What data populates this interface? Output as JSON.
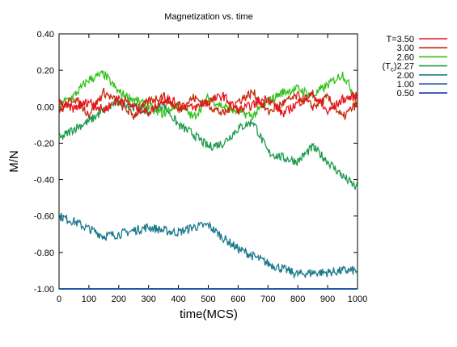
{
  "chart_data": {
    "type": "line",
    "title": "Magnetization vs. time",
    "xlabel": "time(MCS)",
    "ylabel": "M/N",
    "xlim": [
      0,
      1000
    ],
    "ylim": [
      -1.0,
      0.4
    ],
    "x_ticks": [
      0,
      100,
      200,
      300,
      400,
      500,
      600,
      700,
      800,
      900,
      1000
    ],
    "y_ticks": [
      0.4,
      0.2,
      0.0,
      -0.2,
      -0.4,
      -0.6,
      -0.8,
      -1.0
    ],
    "x_tick_labels": [
      "0",
      "100",
      "200",
      "300",
      "400",
      "500",
      "600",
      "700",
      "800",
      "900",
      "1000"
    ],
    "y_tick_labels": [
      "0.40",
      "0.20",
      "0.00",
      "-0.20",
      "-0.40",
      "-0.60",
      "-0.80",
      "-1.00"
    ],
    "grid": false,
    "legend_position": "right",
    "x": [
      0,
      50,
      100,
      150,
      200,
      250,
      300,
      350,
      400,
      450,
      500,
      550,
      600,
      650,
      700,
      750,
      800,
      850,
      900,
      950,
      1000
    ],
    "series": [
      {
        "name": "T=3.50",
        "color": "#e8131b",
        "values": [
          0.02,
          -0.01,
          0.03,
          -0.02,
          0.05,
          0.0,
          -0.03,
          0.04,
          0.02,
          -0.01,
          0.03,
          0.06,
          -0.02,
          0.01,
          0.05,
          -0.04,
          0.02,
          0.07,
          -0.03,
          0.04,
          0.06
        ]
      },
      {
        "name": "3.00",
        "color": "#c8280c",
        "values": [
          -0.03,
          0.05,
          -0.04,
          0.08,
          0.02,
          -0.05,
          0.03,
          0.06,
          -0.02,
          0.05,
          0.01,
          -0.04,
          0.03,
          0.08,
          -0.03,
          0.02,
          0.06,
          0.0,
          0.05,
          -0.06,
          0.02
        ]
      },
      {
        "name": "2.60",
        "color": "#33c21c",
        "values": [
          0.01,
          0.06,
          0.15,
          0.18,
          0.08,
          0.04,
          0.0,
          -0.04,
          0.02,
          -0.06,
          0.05,
          0.0,
          -0.03,
          -0.05,
          0.03,
          0.08,
          0.1,
          0.06,
          0.12,
          0.18,
          0.04
        ]
      },
      {
        "name": "(Tₙ)2.27",
        "display_name": "(Tc)2.27",
        "color": "#1f9a4e",
        "values": [
          -0.18,
          -0.12,
          -0.08,
          -0.02,
          0.03,
          0.0,
          -0.03,
          0.01,
          -0.1,
          -0.15,
          -0.22,
          -0.2,
          -0.12,
          -0.08,
          -0.25,
          -0.28,
          -0.3,
          -0.22,
          -0.3,
          -0.38,
          -0.45
        ]
      },
      {
        "name": "2.00",
        "color": "#1a7a8c",
        "values": [
          -0.6,
          -0.63,
          -0.67,
          -0.71,
          -0.7,
          -0.68,
          -0.66,
          -0.68,
          -0.69,
          -0.66,
          -0.65,
          -0.72,
          -0.78,
          -0.82,
          -0.86,
          -0.89,
          -0.92,
          -0.91,
          -0.91,
          -0.9,
          -0.9
        ]
      },
      {
        "name": "1.00",
        "color": "#1e5aa8",
        "values": [
          -1.0,
          -1.0,
          -1.0,
          -1.0,
          -1.0,
          -1.0,
          -1.0,
          -1.0,
          -1.0,
          -1.0,
          -1.0,
          -1.0,
          -1.0,
          -1.0,
          -1.0,
          -1.0,
          -1.0,
          -1.0,
          -1.0,
          -1.0,
          -1.0
        ]
      },
      {
        "name": "0.50",
        "color": "#0b1fa8",
        "values": [
          -1.0,
          -1.0,
          -1.0,
          -1.0,
          -1.0,
          -1.0,
          -1.0,
          -1.0,
          -1.0,
          -1.0,
          -1.0,
          -1.0,
          -1.0,
          -1.0,
          -1.0,
          -1.0,
          -1.0,
          -1.0,
          -1.0,
          -1.0,
          -1.0
        ]
      }
    ]
  }
}
